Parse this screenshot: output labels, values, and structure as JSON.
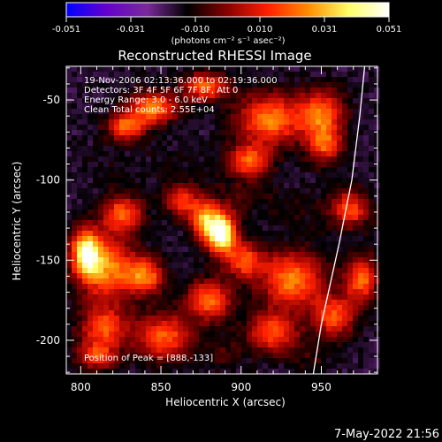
{
  "chart_data": {
    "type": "heatmap",
    "title": "Reconstructed RHESSI Image",
    "xlabel": "Heliocentric X (arcsec)",
    "ylabel": "Heliocentric Y (arcsec)",
    "xlim": [
      791,
      985
    ],
    "ylim": [
      -221,
      -29
    ],
    "xticks": [
      800,
      850,
      900,
      950
    ],
    "yticks": [
      -50,
      -100,
      -150,
      -200
    ],
    "colorbar": {
      "min": -0.051,
      "max": 0.051,
      "ticks": [
        "-0.051",
        "-0.031",
        "-0.010",
        "0.010",
        "0.031",
        "0.051"
      ],
      "unit_label": "(photons cm⁻² s⁻¹ asec⁻²)",
      "palette": [
        "#0000ff",
        "#6600cc",
        "#7a2a9a",
        "#000000",
        "#8a0000",
        "#ff2000",
        "#ff8c00",
        "#ffff66",
        "#ffffff"
      ]
    },
    "annotations": [
      "19-Nov-2006 02:13:36.000 to 02:19:36.000",
      "Detectors: 3F 4F 5F 6F 7F 8F, Att 0",
      "Energy Range: 3.0 - 6.0 keV",
      "Clean     Total counts: 2.55E+04"
    ],
    "peak_label": "Position of Peak = [888,-133]",
    "peak": {
      "x": 888,
      "y": -133
    },
    "limb_curve": [
      [
        977,
        -29
      ],
      [
        974,
        -60
      ],
      [
        969,
        -100
      ],
      [
        961,
        -140
      ],
      [
        950,
        -190
      ],
      [
        945,
        -221
      ]
    ],
    "hotspots": [
      {
        "x": 888,
        "y": -133,
        "value": 0.051,
        "sx": 6,
        "sy": 9
      },
      {
        "x": 877,
        "y": -125,
        "value": 0.026,
        "sx": 6,
        "sy": 9
      },
      {
        "x": 803,
        "y": -145,
        "value": 0.037,
        "sx": 6,
        "sy": 10
      },
      {
        "x": 816,
        "y": -155,
        "value": 0.026,
        "sx": 12,
        "sy": 14
      },
      {
        "x": 840,
        "y": -160,
        "value": 0.022,
        "sx": 8,
        "sy": 8
      },
      {
        "x": 826,
        "y": -121,
        "value": 0.019,
        "sx": 9,
        "sy": 8
      },
      {
        "x": 845,
        "y": -55,
        "value": 0.026,
        "sx": 10,
        "sy": 7
      },
      {
        "x": 828,
        "y": -67,
        "value": 0.021,
        "sx": 8,
        "sy": 6
      },
      {
        "x": 878,
        "y": -42,
        "value": 0.02,
        "sx": 10,
        "sy": 6
      },
      {
        "x": 918,
        "y": -62,
        "value": 0.024,
        "sx": 14,
        "sy": 11
      },
      {
        "x": 905,
        "y": -88,
        "value": 0.019,
        "sx": 9,
        "sy": 7
      },
      {
        "x": 950,
        "y": -58,
        "value": 0.02,
        "sx": 10,
        "sy": 10
      },
      {
        "x": 952,
        "y": -78,
        "value": 0.016,
        "sx": 8,
        "sy": 8
      },
      {
        "x": 968,
        "y": -118,
        "value": 0.016,
        "sx": 9,
        "sy": 8
      },
      {
        "x": 975,
        "y": -162,
        "value": 0.02,
        "sx": 7,
        "sy": 10
      },
      {
        "x": 958,
        "y": -185,
        "value": 0.018,
        "sx": 9,
        "sy": 9
      },
      {
        "x": 932,
        "y": -162,
        "value": 0.024,
        "sx": 14,
        "sy": 12
      },
      {
        "x": 902,
        "y": -150,
        "value": 0.016,
        "sx": 8,
        "sy": 8
      },
      {
        "x": 920,
        "y": -195,
        "value": 0.017,
        "sx": 11,
        "sy": 9
      },
      {
        "x": 880,
        "y": -175,
        "value": 0.02,
        "sx": 10,
        "sy": 9
      },
      {
        "x": 852,
        "y": -198,
        "value": 0.019,
        "sx": 12,
        "sy": 10
      },
      {
        "x": 815,
        "y": -192,
        "value": 0.017,
        "sx": 11,
        "sy": 9
      },
      {
        "x": 810,
        "y": -210,
        "value": 0.013,
        "sx": 9,
        "sy": 6
      },
      {
        "x": 863,
        "y": -113,
        "value": 0.014,
        "sx": 7,
        "sy": 7
      },
      {
        "x": 900,
        "y": -110,
        "value": -0.008,
        "sx": 12,
        "sy": 9
      },
      {
        "x": 860,
        "y": -90,
        "value": -0.012,
        "sx": 16,
        "sy": 11
      },
      {
        "x": 815,
        "y": -92,
        "value": -0.013,
        "sx": 13,
        "sy": 10
      },
      {
        "x": 935,
        "y": -118,
        "value": -0.011,
        "sx": 12,
        "sy": 12
      },
      {
        "x": 890,
        "y": -208,
        "value": -0.007,
        "sx": 10,
        "sy": 7
      },
      {
        "x": 945,
        "y": -210,
        "value": -0.01,
        "sx": 10,
        "sy": 8
      }
    ]
  },
  "footer": {
    "timestamp": "7-May-2022 21:56"
  }
}
